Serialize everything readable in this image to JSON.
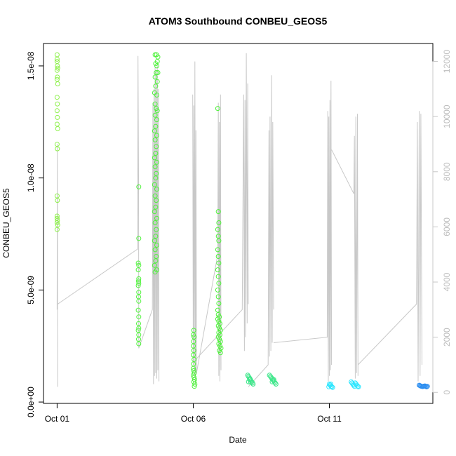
{
  "chart_data": {
    "type": "scatter",
    "title": "ATOM3 Southbound CONBEU_GEOS5",
    "xlabel": "Date",
    "ylabel": "CONBEU_GEOS5",
    "x_ticks": [
      "Oct 01",
      "Oct 06",
      "Oct 11"
    ],
    "x_tick_days": [
      1,
      6,
      11
    ],
    "xlim_days": [
      0.5,
      14.8
    ],
    "y_ticks": [
      "0.0e+00",
      "5.0e-09",
      "1.0e-08",
      "1.5e-08"
    ],
    "y_tick_values": [
      0,
      5e-09,
      1e-08,
      1.5e-08
    ],
    "ylim": [
      -6e-11,
      1.6e-08
    ],
    "y2_ticks": [
      "0",
      "2000",
      "4000",
      "6000",
      "8000",
      "10000",
      "12000"
    ],
    "y2_tick_values": [
      0,
      2000,
      4000,
      6000,
      8000,
      10000,
      12000
    ],
    "y2lim": [
      -400,
      12650
    ],
    "grid": false,
    "colors": {
      "altitude_line": "#c8c8c8",
      "green": "#4ef23a",
      "lime": "#8df04a",
      "cyan": "#2ee6ff",
      "blue": "#2a8df0"
    },
    "series": [
      {
        "type": "points",
        "color": "#8df04a",
        "points": [
          [
            1.0,
            1.55e-08
          ],
          [
            1.0,
            1.53e-08
          ],
          [
            1.0,
            1.52e-08
          ],
          [
            1.01,
            1.5e-08
          ],
          [
            1.02,
            1.49e-08
          ],
          [
            1.0,
            1.48e-08
          ],
          [
            1.01,
            1.45e-08
          ],
          [
            1.0,
            1.44e-08
          ],
          [
            1.02,
            1.42e-08
          ],
          [
            1.0,
            1.36e-08
          ],
          [
            1.01,
            1.33e-08
          ],
          [
            1.0,
            1.3e-08
          ],
          [
            1.01,
            1.27e-08
          ],
          [
            1.0,
            1.24e-08
          ],
          [
            1.02,
            1.22e-08
          ],
          [
            1.0,
            1.15e-08
          ],
          [
            1.01,
            1.13e-08
          ],
          [
            1.0,
            9.2e-09
          ],
          [
            1.01,
            9e-09
          ],
          [
            1.0,
            8.3e-09
          ],
          [
            1.0,
            8.2e-09
          ],
          [
            1.01,
            8.1e-09
          ],
          [
            1.0,
            8e-09
          ],
          [
            1.02,
            7.9e-09
          ],
          [
            1.0,
            7.7e-09
          ]
        ]
      },
      {
        "type": "points",
        "color": "#4ef23a",
        "points": [
          [
            4.0,
            9.6e-09
          ],
          [
            4.0,
            7.3e-09
          ],
          [
            3.98,
            6.2e-09
          ],
          [
            4.0,
            6.1e-09
          ],
          [
            3.98,
            5.9e-09
          ],
          [
            4.0,
            5.5e-09
          ],
          [
            3.99,
            5.4e-09
          ],
          [
            4.0,
            5.3e-09
          ],
          [
            3.98,
            5.2e-09
          ],
          [
            4.0,
            4.9e-09
          ],
          [
            3.99,
            4.7e-09
          ],
          [
            4.0,
            4.5e-09
          ],
          [
            3.98,
            4.1e-09
          ],
          [
            4.0,
            3.8e-09
          ],
          [
            3.99,
            3.5e-09
          ],
          [
            4.0,
            3.3e-09
          ],
          [
            3.98,
            3.2e-09
          ],
          [
            4.0,
            3e-09
          ],
          [
            3.99,
            2.8e-09
          ],
          [
            4.0,
            2.6e-09
          ],
          [
            4.6,
            1.55e-08
          ],
          [
            4.65,
            1.55e-08
          ],
          [
            4.7,
            1.54e-08
          ],
          [
            4.68,
            1.52e-08
          ],
          [
            4.62,
            1.51e-08
          ],
          [
            4.66,
            1.5e-08
          ],
          [
            4.64,
            1.47e-08
          ],
          [
            4.7,
            1.47e-08
          ],
          [
            4.6,
            1.45e-08
          ],
          [
            4.68,
            1.43e-08
          ],
          [
            4.62,
            1.41e-08
          ],
          [
            4.58,
            1.38e-08
          ],
          [
            4.66,
            1.37e-08
          ],
          [
            4.6,
            1.33e-08
          ],
          [
            4.64,
            1.31e-08
          ],
          [
            4.68,
            1.3e-08
          ],
          [
            4.6,
            1.28e-08
          ],
          [
            4.66,
            1.26e-08
          ],
          [
            4.62,
            1.23e-08
          ],
          [
            4.58,
            1.21e-08
          ],
          [
            4.66,
            1.19e-08
          ],
          [
            4.6,
            1.17e-08
          ],
          [
            4.64,
            1.14e-08
          ],
          [
            4.62,
            1.11e-08
          ],
          [
            4.58,
            1.09e-08
          ],
          [
            4.66,
            1.07e-08
          ],
          [
            4.6,
            1.05e-08
          ],
          [
            4.64,
            1.02e-08
          ],
          [
            4.62,
            1e-08
          ],
          [
            4.58,
            9.7e-09
          ],
          [
            4.66,
            9.5e-09
          ],
          [
            4.6,
            9.2e-09
          ],
          [
            4.64,
            9e-09
          ],
          [
            4.62,
            8.7e-09
          ],
          [
            4.58,
            8.5e-09
          ],
          [
            4.66,
            8.2e-09
          ],
          [
            4.6,
            8e-09
          ],
          [
            4.64,
            7.7e-09
          ],
          [
            4.62,
            7.4e-09
          ],
          [
            4.58,
            7.2e-09
          ],
          [
            4.66,
            7e-09
          ],
          [
            4.6,
            6.8e-09
          ],
          [
            4.64,
            6.5e-09
          ],
          [
            4.62,
            6.3e-09
          ],
          [
            4.58,
            6.1e-09
          ],
          [
            4.66,
            5.9e-09
          ],
          [
            4.6,
            5.8e-09
          ],
          [
            6.02,
            3.2e-09
          ],
          [
            6.0,
            3e-09
          ],
          [
            6.03,
            2.9e-09
          ],
          [
            6.01,
            2.7e-09
          ],
          [
            6.0,
            2.5e-09
          ],
          [
            6.02,
            2.3e-09
          ],
          [
            6.0,
            2.1e-09
          ],
          [
            6.03,
            1.9e-09
          ],
          [
            6.01,
            1.7e-09
          ],
          [
            6.0,
            1.5e-09
          ],
          [
            6.02,
            1.4e-09
          ],
          [
            6.04,
            1.3e-09
          ],
          [
            6.0,
            1.2e-09
          ],
          [
            6.03,
            1.1e-09
          ],
          [
            6.05,
            1e-09
          ],
          [
            6.02,
            9e-10
          ],
          [
            6.06,
            8e-10
          ],
          [
            6.04,
            7e-10
          ],
          [
            6.9,
            1.31e-08
          ],
          [
            6.92,
            8.5e-09
          ],
          [
            6.94,
            8e-09
          ],
          [
            6.9,
            7.7e-09
          ],
          [
            6.92,
            7.4e-09
          ],
          [
            6.94,
            7.2e-09
          ],
          [
            6.9,
            6.8e-09
          ],
          [
            6.92,
            6.5e-09
          ],
          [
            6.94,
            6.2e-09
          ],
          [
            6.9,
            5.9e-09
          ],
          [
            6.92,
            5.6e-09
          ],
          [
            6.94,
            5.3e-09
          ],
          [
            6.9,
            5e-09
          ],
          [
            6.92,
            4.7e-09
          ],
          [
            6.94,
            4.4e-09
          ],
          [
            6.9,
            4.1e-09
          ],
          [
            6.92,
            3.9e-09
          ],
          [
            6.96,
            3.8e-09
          ],
          [
            6.9,
            3.7e-09
          ],
          [
            6.94,
            3.6e-09
          ],
          [
            6.98,
            3.5e-09
          ],
          [
            6.92,
            3.4e-09
          ],
          [
            6.96,
            3.3e-09
          ],
          [
            7.0,
            3.2e-09
          ],
          [
            6.94,
            3.1e-09
          ],
          [
            6.98,
            3e-09
          ],
          [
            6.92,
            2.9e-09
          ],
          [
            6.96,
            2.8e-09
          ],
          [
            7.0,
            2.7e-09
          ],
          [
            6.94,
            2.6e-09
          ],
          [
            6.98,
            2.5e-09
          ],
          [
            7.02,
            2.4e-09
          ],
          [
            6.96,
            2.3e-09
          ],
          [
            7.0,
            2.2e-09
          ]
        ]
      },
      {
        "type": "points",
        "color": "#3ee68a",
        "points": [
          [
            8.0,
            1.2e-09
          ],
          [
            8.02,
            1.15e-09
          ],
          [
            8.05,
            1.1e-09
          ],
          [
            8.08,
            1.05e-09
          ],
          [
            8.1,
            1e-09
          ],
          [
            8.12,
            9.5e-10
          ],
          [
            8.15,
            9e-10
          ],
          [
            8.18,
            8.5e-10
          ],
          [
            8.2,
            8e-10
          ],
          [
            8.03,
            9e-10
          ],
          [
            8.07,
            1e-09
          ],
          [
            8.11,
            8.8e-10
          ],
          [
            8.8,
            1.2e-09
          ],
          [
            8.83,
            1.15e-09
          ],
          [
            8.86,
            1.1e-09
          ],
          [
            8.89,
            1.05e-09
          ],
          [
            8.92,
            1e-09
          ],
          [
            8.95,
            9.5e-10
          ],
          [
            8.98,
            9e-10
          ],
          [
            9.01,
            8.5e-10
          ],
          [
            9.04,
            8e-10
          ],
          [
            8.9,
            9e-10
          ],
          [
            8.96,
            1e-09
          ]
        ]
      },
      {
        "type": "points",
        "color": "#2ee6ff",
        "points": [
          [
            11.0,
            8e-10
          ],
          [
            11.03,
            7.5e-10
          ],
          [
            11.06,
            7e-10
          ],
          [
            11.09,
            6.8e-10
          ],
          [
            11.12,
            6.5e-10
          ],
          [
            11.05,
            8e-10
          ],
          [
            10.98,
            6.8e-10
          ],
          [
            11.8,
            9e-10
          ],
          [
            11.83,
            8.5e-10
          ],
          [
            11.86,
            8e-10
          ],
          [
            11.89,
            7.5e-10
          ],
          [
            11.92,
            7e-10
          ],
          [
            11.95,
            8.5e-10
          ],
          [
            11.98,
            8e-10
          ],
          [
            12.01,
            7.5e-10
          ],
          [
            12.04,
            7e-10
          ],
          [
            12.07,
            6.8e-10
          ]
        ]
      },
      {
        "type": "points",
        "color": "#2a8df0",
        "points": [
          [
            14.3,
            7.5e-10
          ],
          [
            14.33,
            7.3e-10
          ],
          [
            14.36,
            7.1e-10
          ],
          [
            14.39,
            7e-10
          ],
          [
            14.42,
            6.9e-10
          ],
          [
            14.45,
            7e-10
          ],
          [
            14.48,
            7.1e-10
          ],
          [
            14.51,
            7.2e-10
          ],
          [
            14.54,
            7e-10
          ],
          [
            14.57,
            6.8e-10
          ],
          [
            14.6,
            7e-10
          ]
        ]
      }
    ],
    "altitude_segments": [
      [
        [
          1.0,
          3000
        ],
        [
          1.01,
          9000
        ],
        [
          1.02,
          200
        ]
      ],
      [
        [
          1.02,
          3200
        ],
        [
          3.96,
          5200
        ],
        [
          3.97,
          12200
        ],
        [
          3.99,
          7800
        ],
        [
          4.0,
          1600
        ]
      ],
      [
        [
          4.0,
          1600
        ],
        [
          4.5,
          3000
        ],
        [
          4.52,
          10500
        ],
        [
          4.54,
          300
        ],
        [
          4.56,
          11000
        ],
        [
          4.58,
          600
        ],
        [
          4.6,
          11800
        ],
        [
          4.62,
          700
        ],
        [
          4.64,
          11500
        ],
        [
          4.66,
          500
        ],
        [
          4.68,
          11900
        ],
        [
          4.7,
          800
        ],
        [
          4.72,
          11000
        ],
        [
          4.74,
          400
        ]
      ],
      [
        [
          5.98,
          10800
        ],
        [
          6.0,
          1000
        ],
        [
          6.02,
          10400
        ],
        [
          6.04,
          600
        ],
        [
          6.06,
          12000
        ],
        [
          6.08,
          300
        ],
        [
          6.1,
          9500
        ],
        [
          6.12,
          700
        ],
        [
          6.9,
          5000
        ],
        [
          6.92,
          10500
        ],
        [
          6.94,
          600
        ],
        [
          6.96,
          9800
        ],
        [
          6.98,
          400
        ],
        [
          7.0,
          10800
        ],
        [
          7.02,
          800
        ]
      ],
      [
        [
          6.1,
          1200
        ],
        [
          7.8,
          3000
        ],
        [
          7.85,
          10800
        ],
        [
          7.88,
          1500
        ],
        [
          7.9,
          10600
        ],
        [
          7.92,
          2000
        ],
        [
          7.95,
          12300
        ],
        [
          7.98,
          2500
        ],
        [
          8.0,
          11200
        ],
        [
          8.02,
          3200
        ]
      ],
      [
        [
          8.02,
          200
        ],
        [
          8.75,
          1000
        ],
        [
          8.78,
          9500
        ],
        [
          8.8,
          1300
        ],
        [
          8.82,
          10000
        ],
        [
          8.85,
          1500
        ],
        [
          8.88,
          11500
        ],
        [
          8.9,
          1800
        ],
        [
          8.92,
          9800
        ],
        [
          8.95,
          3000
        ]
      ],
      [
        [
          8.95,
          1800
        ],
        [
          10.92,
          2000
        ],
        [
          10.94,
          10200
        ],
        [
          10.96,
          400
        ],
        [
          10.98,
          10000
        ],
        [
          11.0,
          600
        ],
        [
          11.02,
          10600
        ],
        [
          11.04,
          800
        ],
        [
          11.06,
          11300
        ],
        [
          11.08,
          1000
        ]
      ],
      [
        [
          11.08,
          8800
        ],
        [
          11.9,
          7200
        ],
        [
          11.92,
          9300
        ],
        [
          11.95,
          500
        ],
        [
          11.97,
          10000
        ],
        [
          12.0,
          700
        ],
        [
          12.03,
          10100
        ],
        [
          12.05,
          600
        ]
      ],
      [
        [
          12.05,
          1000
        ],
        [
          14.2,
          3200
        ],
        [
          14.23,
          9800
        ],
        [
          14.26,
          400
        ],
        [
          14.3,
          10200
        ],
        [
          14.33,
          600
        ],
        [
          14.36,
          10100
        ],
        [
          14.4,
          1000
        ]
      ]
    ]
  }
}
